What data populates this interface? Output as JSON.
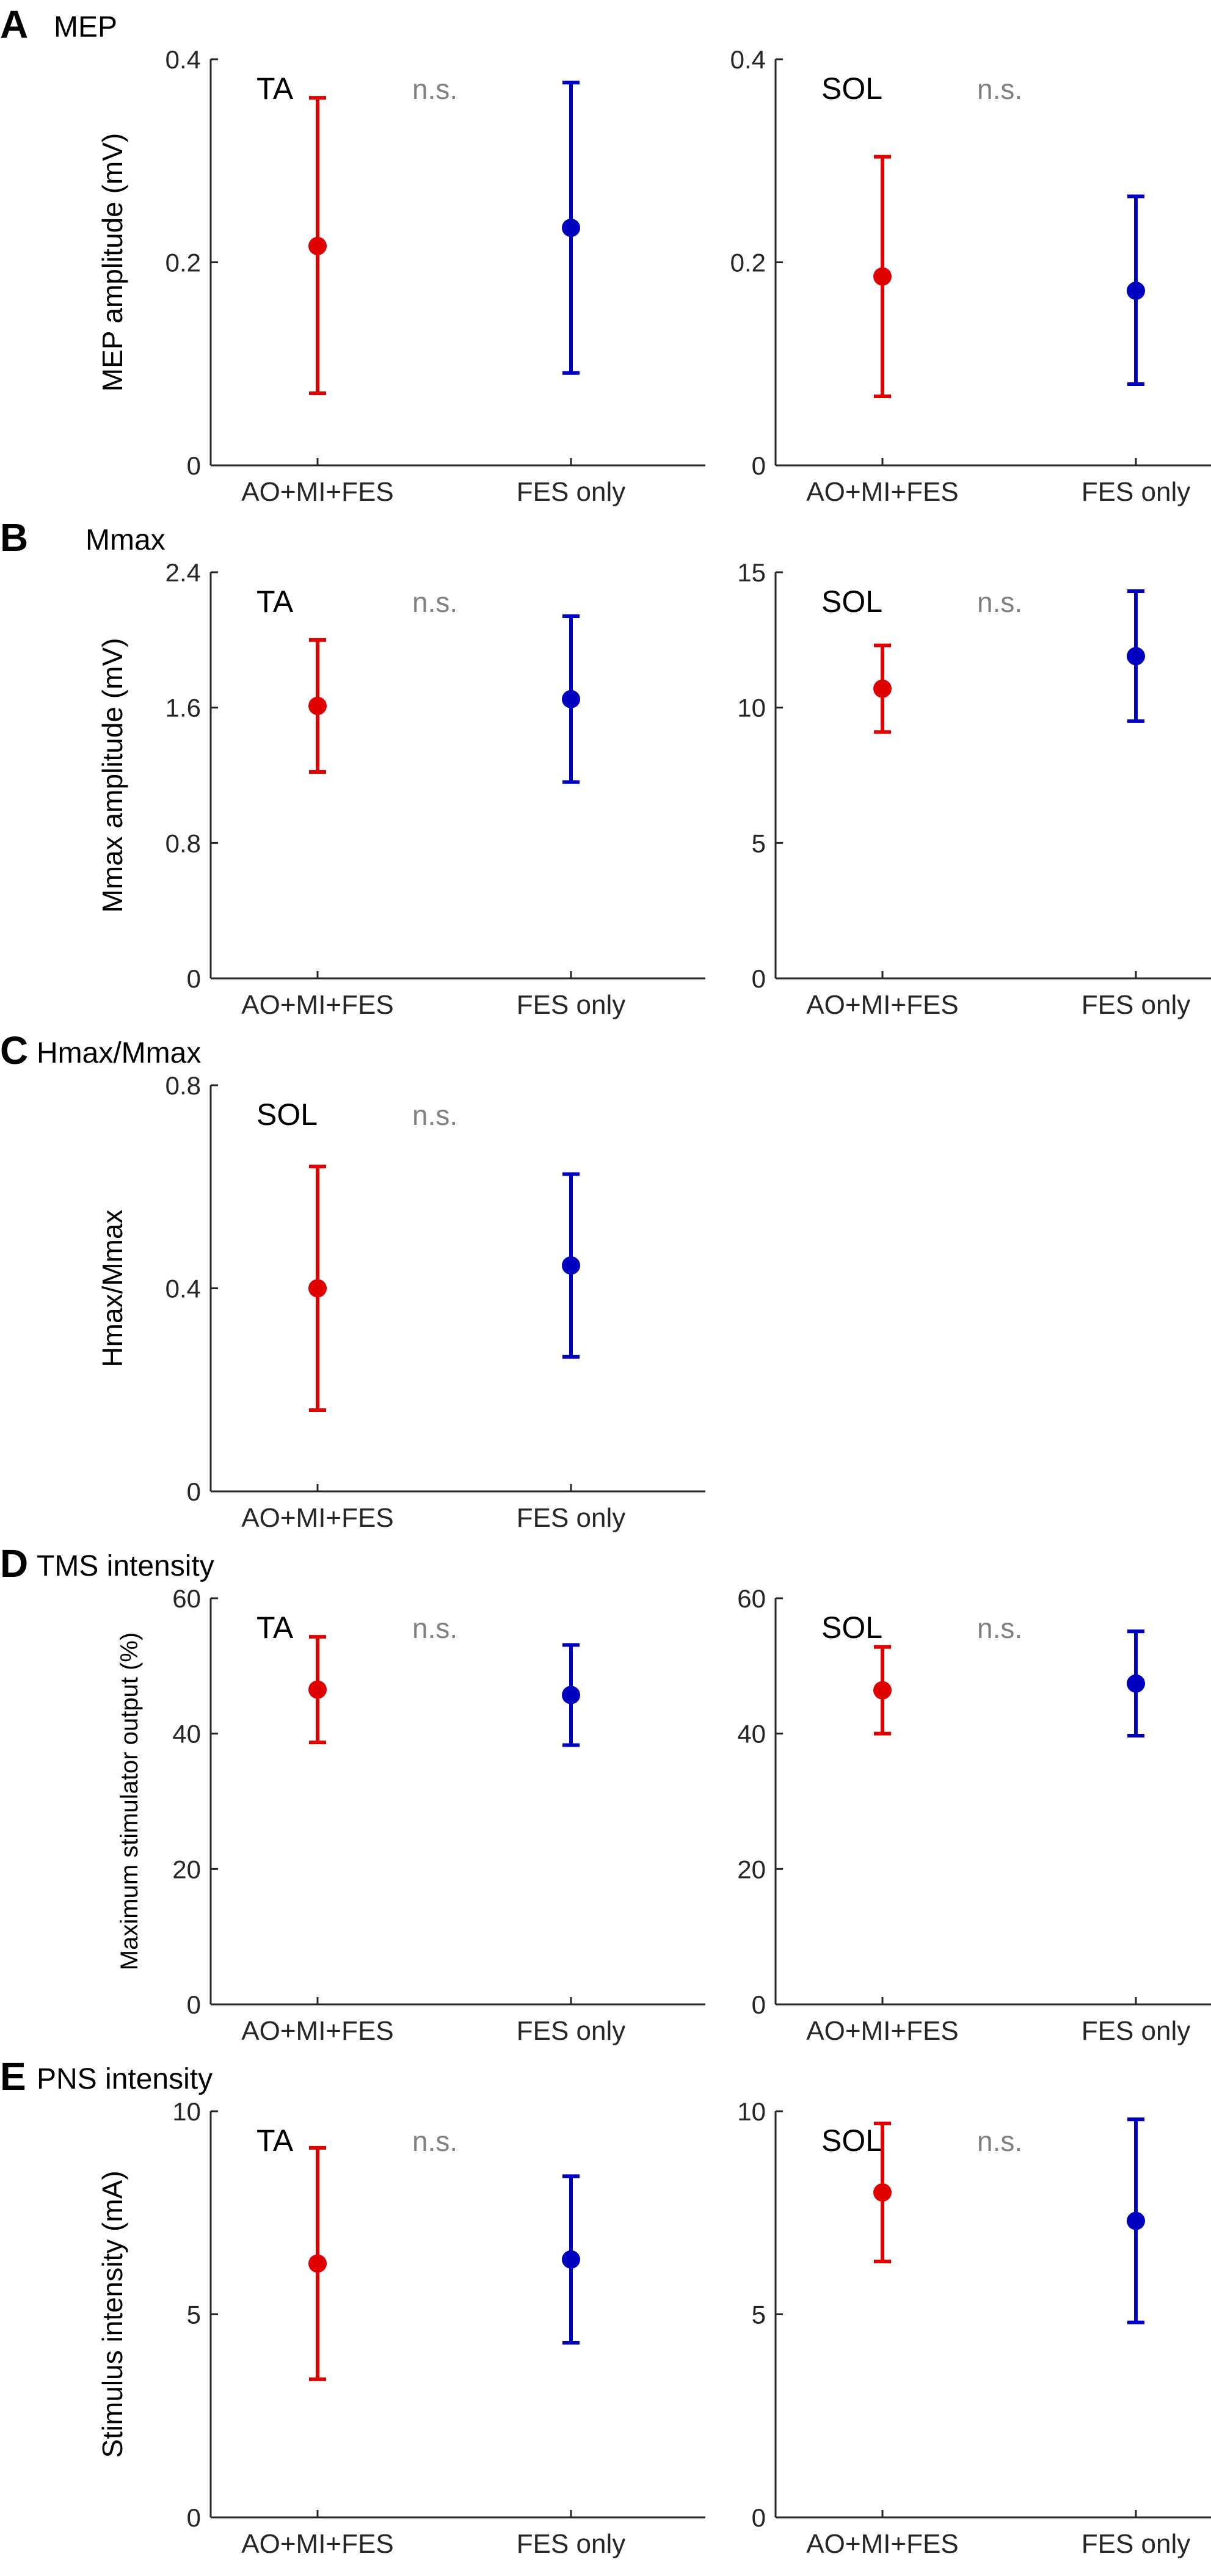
{
  "colors": {
    "groupA": "#e00000",
    "groupB": "#0000c0",
    "ns": "#808080"
  },
  "panel_titles": {
    "A": {
      "letter": "A",
      "title": "MEP"
    },
    "B": {
      "letter": "B",
      "title": "Mmax"
    },
    "C": {
      "letter": "C",
      "title": "Hmax/Mmax"
    },
    "D": {
      "letter": "D",
      "title": "TMS intensity"
    },
    "E": {
      "letter": "E",
      "title": "PNS intensity"
    }
  },
  "chart_data": [
    {
      "panel": "A",
      "side": "left",
      "type": "scatter",
      "title": "TA",
      "significance": "n.s.",
      "ylabel": "MEP amplitude (mV)",
      "ylim": [
        0,
        0.4
      ],
      "yticks": [
        0,
        0.2,
        0.4
      ],
      "ytick_labels": [
        "0",
        "0.2",
        "0.4"
      ],
      "categories": [
        "AO+MI+FES",
        "FES only"
      ],
      "values": [
        0.216,
        0.234
      ],
      "lower": [
        0.071,
        0.091
      ],
      "upper": [
        0.362,
        0.377
      ]
    },
    {
      "panel": "A",
      "side": "right",
      "type": "scatter",
      "title": "SOL",
      "significance": "n.s.",
      "ylabel": "",
      "ylim": [
        0,
        0.4
      ],
      "yticks": [
        0,
        0.2,
        0.4
      ],
      "ytick_labels": [
        "0",
        "0.2",
        "0.4"
      ],
      "categories": [
        "AO+MI+FES",
        "FES only"
      ],
      "values": [
        0.186,
        0.172
      ],
      "lower": [
        0.068,
        0.08
      ],
      "upper": [
        0.304,
        0.265
      ]
    },
    {
      "panel": "B",
      "side": "left",
      "type": "scatter",
      "title": "TA",
      "significance": "n.s.",
      "ylabel": "Mmax amplitude (mV)",
      "ylim": [
        0,
        2.4
      ],
      "yticks": [
        0,
        0.8,
        1.6,
        2.4
      ],
      "ytick_labels": [
        "0",
        "0.8",
        "1.6",
        "2.4"
      ],
      "categories": [
        "AO+MI+FES",
        "FES only"
      ],
      "values": [
        1.61,
        1.65
      ],
      "lower": [
        1.22,
        1.16
      ],
      "upper": [
        2.0,
        2.14
      ]
    },
    {
      "panel": "B",
      "side": "right",
      "type": "scatter",
      "title": "SOL",
      "significance": "n.s.",
      "ylabel": "",
      "ylim": [
        0,
        15
      ],
      "yticks": [
        0,
        5,
        10,
        15
      ],
      "ytick_labels": [
        "0",
        "5",
        "10",
        "15"
      ],
      "categories": [
        "AO+MI+FES",
        "FES only"
      ],
      "values": [
        10.7,
        11.9
      ],
      "lower": [
        9.1,
        9.5
      ],
      "upper": [
        12.3,
        14.3
      ]
    },
    {
      "panel": "C",
      "side": "left",
      "type": "scatter",
      "title": "SOL",
      "significance": "n.s.",
      "ylabel": "Hmax/Mmax",
      "ylim": [
        0,
        0.8
      ],
      "yticks": [
        0,
        0.4,
        0.8
      ],
      "ytick_labels": [
        "0",
        "0.4",
        "0.8"
      ],
      "categories": [
        "AO+MI+FES",
        "FES only"
      ],
      "values": [
        0.4,
        0.445
      ],
      "lower": [
        0.16,
        0.265
      ],
      "upper": [
        0.64,
        0.625
      ]
    },
    {
      "panel": "D",
      "side": "left",
      "type": "scatter",
      "title": "TA",
      "significance": "n.s.",
      "ylabel": "Maximum stimulator output (%)",
      "ylim": [
        0,
        60
      ],
      "yticks": [
        0,
        20,
        40,
        60
      ],
      "ytick_labels": [
        "0",
        "20",
        "40",
        "60"
      ],
      "categories": [
        "AO+MI+FES",
        "FES only"
      ],
      "values": [
        46.5,
        45.7
      ],
      "lower": [
        38.7,
        38.3
      ],
      "upper": [
        54.3,
        53.1
      ]
    },
    {
      "panel": "D",
      "side": "right",
      "type": "scatter",
      "title": "SOL",
      "significance": "n.s.",
      "ylabel": "",
      "ylim": [
        0,
        60
      ],
      "yticks": [
        0,
        20,
        40,
        60
      ],
      "ytick_labels": [
        "0",
        "20",
        "40",
        "60"
      ],
      "categories": [
        "AO+MI+FES",
        "FES only"
      ],
      "values": [
        46.4,
        47.4
      ],
      "lower": [
        40.0,
        39.7
      ],
      "upper": [
        52.8,
        55.1
      ]
    },
    {
      "panel": "E",
      "side": "left",
      "type": "scatter",
      "title": "TA",
      "significance": "n.s.",
      "ylabel": "Stimulus intensity (mA)",
      "ylim": [
        0,
        10
      ],
      "yticks": [
        0,
        5,
        10
      ],
      "ytick_labels": [
        "0",
        "5",
        "10"
      ],
      "categories": [
        "AO+MI+FES",
        "FES only"
      ],
      "values": [
        6.25,
        6.35
      ],
      "lower": [
        3.4,
        4.3
      ],
      "upper": [
        9.1,
        8.4
      ]
    },
    {
      "panel": "E",
      "side": "right",
      "type": "scatter",
      "title": "SOL",
      "significance": "n.s.",
      "ylabel": "",
      "ylim": [
        0,
        10
      ],
      "yticks": [
        0,
        5,
        10
      ],
      "ytick_labels": [
        "0",
        "5",
        "10"
      ],
      "categories": [
        "AO+MI+FES",
        "FES only"
      ],
      "values": [
        8.0,
        7.3
      ],
      "lower": [
        6.3,
        4.8
      ],
      "upper": [
        9.7,
        9.8
      ]
    }
  ]
}
